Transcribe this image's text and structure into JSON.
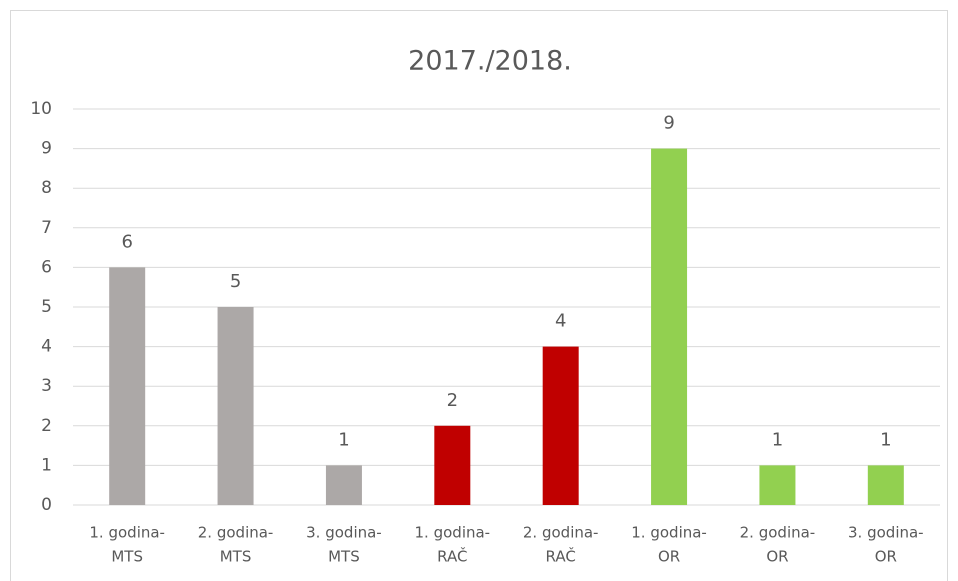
{
  "chart_data": {
    "type": "bar",
    "title": "2017./2018.",
    "categories": [
      [
        "1. godina-",
        "MTS"
      ],
      [
        "2. godina-",
        "MTS"
      ],
      [
        "3. godina-",
        "MTS"
      ],
      [
        "1. godina-",
        "RAČ"
      ],
      [
        "2. godina-",
        "RAČ"
      ],
      [
        "1. godina-",
        "OR"
      ],
      [
        "2. godina-",
        "OR"
      ],
      [
        "3. godina-",
        "OR"
      ]
    ],
    "values": [
      6,
      5,
      1,
      2,
      4,
      9,
      1,
      1
    ],
    "colors": [
      "#aca8a7",
      "#aca8a7",
      "#aca8a7",
      "#c00000",
      "#c00000",
      "#92d050",
      "#92d050",
      "#92d050"
    ],
    "ylim": [
      0,
      10
    ],
    "yticks": [
      0,
      1,
      2,
      3,
      4,
      5,
      6,
      7,
      8,
      9,
      10
    ],
    "grid": true
  }
}
